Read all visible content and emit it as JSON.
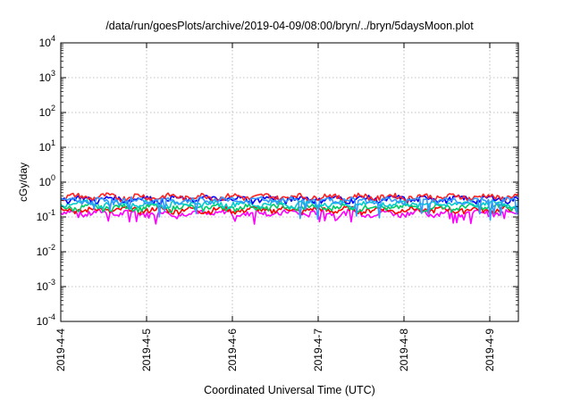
{
  "chart_data": {
    "type": "line",
    "title": "/data/run/goesPlots/archive/2019-04-09/08:00/bryn/../bryn/5daysMoon.plot",
    "xlabel": "Coordinated Universal Time (UTC)",
    "ylabel": "cGy/day",
    "yscale": "log",
    "ylim": [
      0.0001,
      10000
    ],
    "xlim": [
      "2019-04-04 00:00",
      "2019-04-09 08:00"
    ],
    "grid": true,
    "legend": "none",
    "x_tick_labels": [
      "2019-4-4",
      "2019-4-5",
      "2019-4-6",
      "2019-4-7",
      "2019-4-8",
      "2019-4-9"
    ],
    "y_ticks": [
      {
        "base": "10",
        "exp": "-4"
      },
      {
        "base": "10",
        "exp": "-3"
      },
      {
        "base": "10",
        "exp": "-2"
      },
      {
        "base": "10",
        "exp": "-1"
      },
      {
        "base": "10",
        "exp": "0"
      },
      {
        "base": "10",
        "exp": "1"
      },
      {
        "base": "10",
        "exp": "2"
      },
      {
        "base": "10",
        "exp": "3"
      },
      {
        "base": "10",
        "exp": "4"
      }
    ],
    "series": [
      {
        "color": "#ff00ff",
        "typical": 0.13,
        "low_dips": 0.06
      },
      {
        "color": "#ff0000",
        "typical": 0.16
      },
      {
        "color": "#00cc66",
        "typical": 0.19
      },
      {
        "color": "#00cccc",
        "typical": 0.24
      },
      {
        "color": "#0000ff",
        "typical": 0.33
      },
      {
        "color": "#ff2020",
        "typical": 0.38
      },
      {
        "color": "#3399ff",
        "typical": 0.3,
        "low_dips": 0.08
      }
    ]
  }
}
